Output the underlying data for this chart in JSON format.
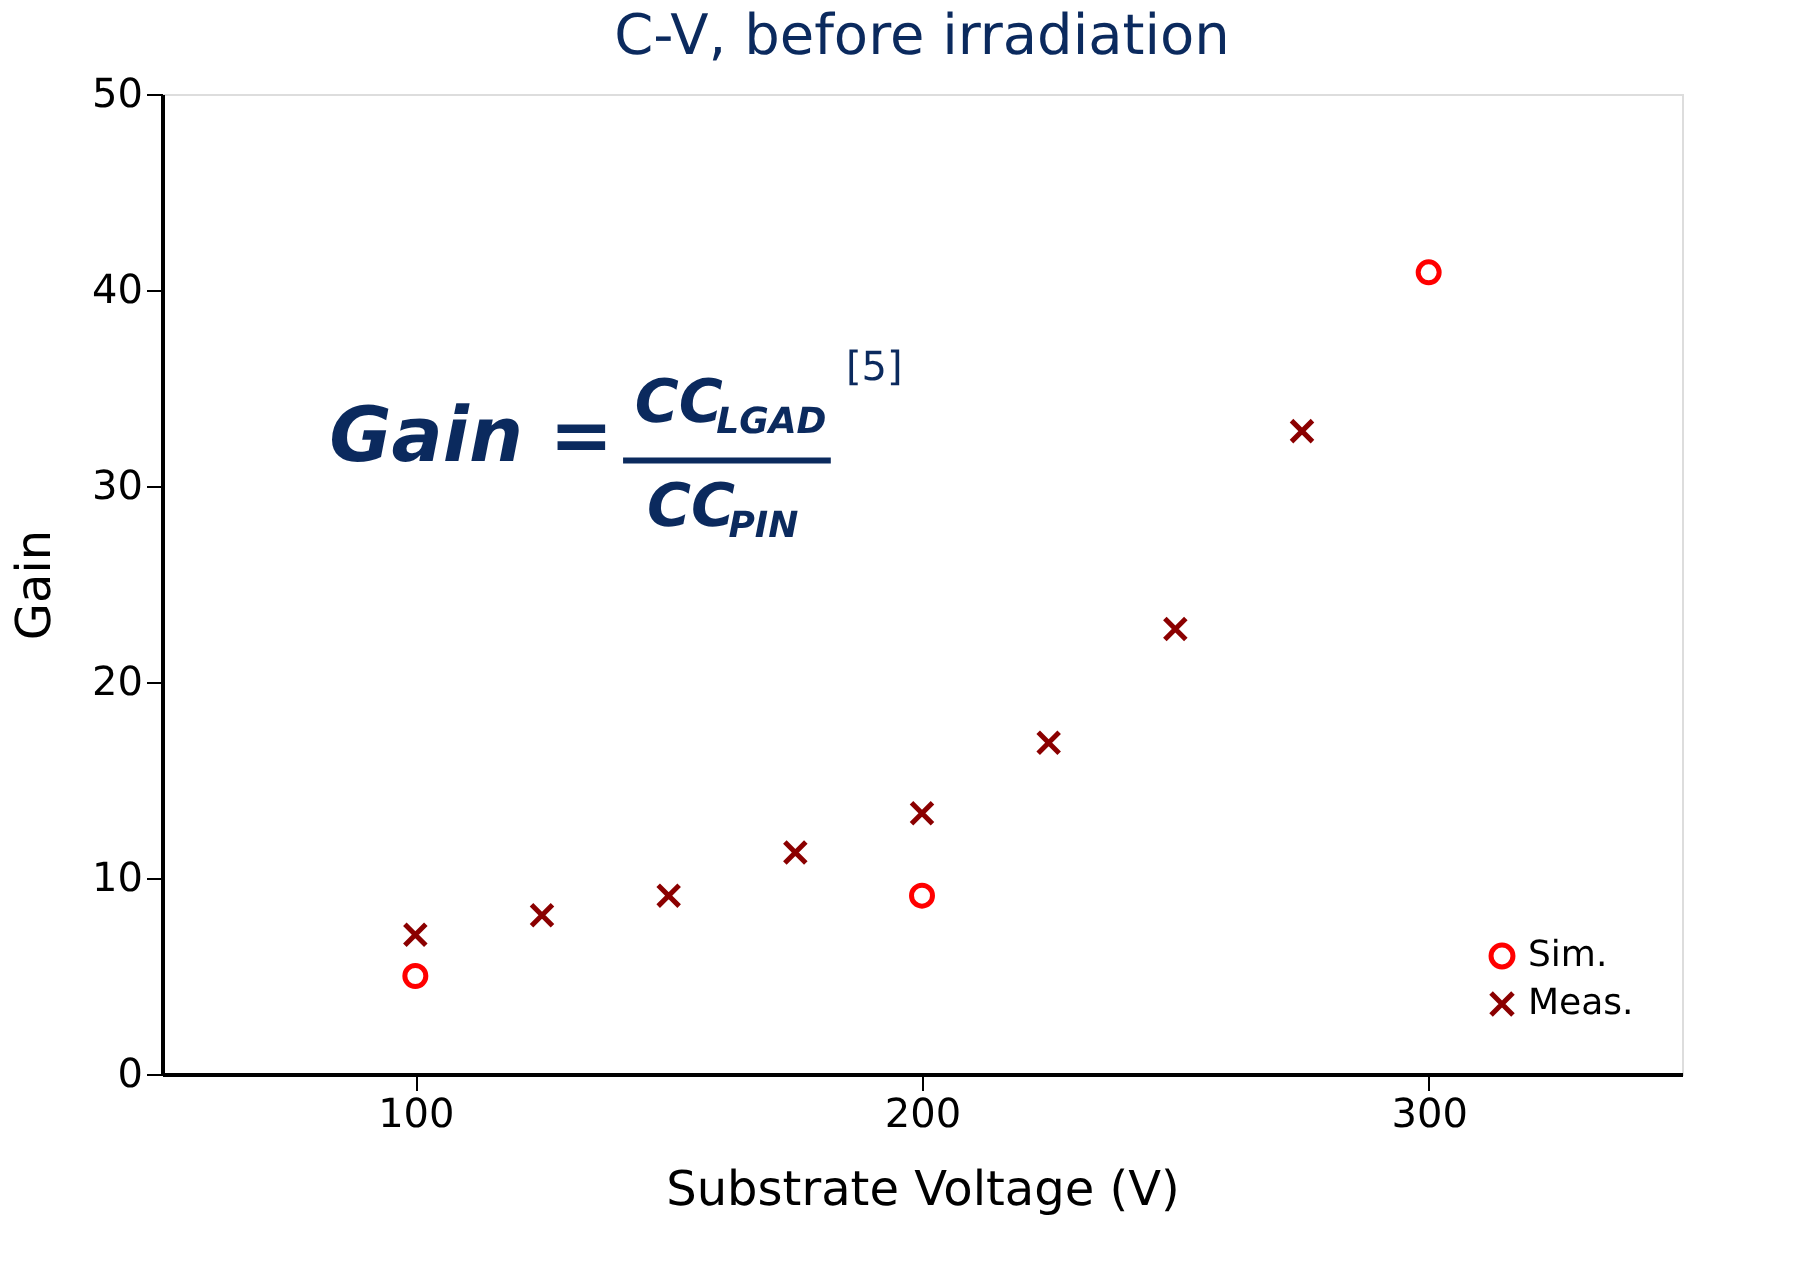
{
  "chart_data": {
    "type": "scatter",
    "title": "C-V, before irradiation",
    "xlabel": "Substrate Voltage (V)",
    "ylabel": "Gain",
    "series": [
      {
        "name": "Sim.",
        "color": "#ff0000",
        "marker": "circle",
        "x": [
          100,
          200,
          300
        ],
        "values": [
          5.0,
          9.1,
          40.9
        ]
      },
      {
        "name": "Meas.",
        "color": "#8b0000",
        "marker": "cross",
        "x": [
          100,
          125,
          150,
          175,
          200,
          225,
          250,
          275
        ],
        "values": [
          7.1,
          8.1,
          9.1,
          11.3,
          13.3,
          16.9,
          22.7,
          32.8
        ]
      }
    ],
    "xlim": [
      50,
      350
    ],
    "ylim": [
      0,
      50
    ],
    "xticks": [
      100,
      200,
      300
    ],
    "yticks": [
      0,
      10,
      20,
      30,
      40,
      50
    ],
    "grid": false,
    "legend": "bottom right",
    "annotations": [
      "Gain =",
      "CC$_{LGAD}$",
      "CC$_{PIN}$",
      "[5]"
    ]
  }
}
